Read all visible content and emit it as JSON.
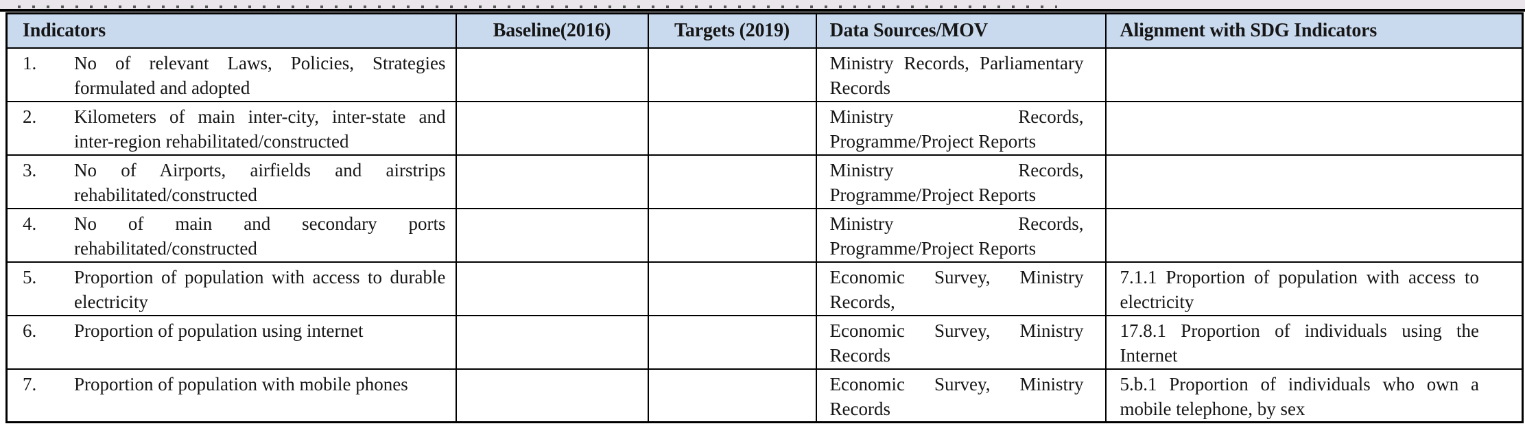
{
  "top_strip": {
    "clipped_text": "",
    "note_visible_only_as_cut_off_letter_bottoms": true
  },
  "colors": {
    "header_bg": "#c9d9ee",
    "strip_bg": "#e9e5ea",
    "border": "#000000",
    "page_bg": "#ffffff",
    "text": "#161616"
  },
  "table": {
    "columns": [
      {
        "label": "Indicators"
      },
      {
        "label": "Baseline(2016)"
      },
      {
        "label": "Targets (2019)"
      },
      {
        "label": "Data Sources/MOV"
      },
      {
        "label": "Alignment with SDG Indicators"
      }
    ],
    "rows": [
      {
        "num": "1.",
        "indicator": "No of relevant Laws, Policies, Strategies formulated and adopted",
        "baseline": "",
        "targets": "",
        "data_sources": "Ministry Records, Parliamentary Records",
        "sdg_alignment": ""
      },
      {
        "num": "2.",
        "indicator": "Kilometers of main inter-city, inter-state and inter-region rehabilitated/constructed",
        "baseline": "",
        "targets": "",
        "data_sources": "Ministry Records, Programme/Project Reports",
        "sdg_alignment": ""
      },
      {
        "num": "3.",
        "indicator": "No of Airports, airfields and airstrips rehabilitated/constructed",
        "baseline": "",
        "targets": "",
        "data_sources": "Ministry Records, Programme/Project Reports",
        "sdg_alignment": ""
      },
      {
        "num": "4.",
        "indicator": "No of main and secondary ports rehabilitated/constructed",
        "baseline": "",
        "targets": "",
        "data_sources": "Ministry Records, Programme/Project Reports",
        "sdg_alignment": ""
      },
      {
        "num": "5.",
        "indicator": "Proportion of population with access to durable electricity",
        "baseline": "",
        "targets": "",
        "data_sources": "Economic Survey, Ministry Records,",
        "sdg_alignment": "7.1.1 Proportion of population with access to electricity"
      },
      {
        "num": "6.",
        "indicator": "Proportion of population using internet",
        "baseline": "",
        "targets": "",
        "data_sources": "Economic Survey, Ministry Records",
        "sdg_alignment": "17.8.1 Proportion of individuals using the Internet"
      },
      {
        "num": "7.",
        "indicator": "Proportion of population with mobile phones",
        "baseline": "",
        "targets": "",
        "data_sources": "Economic Survey, Ministry Records",
        "sdg_alignment": "5.b.1 Proportion of individuals who own a mobile telephone, by sex"
      }
    ]
  }
}
